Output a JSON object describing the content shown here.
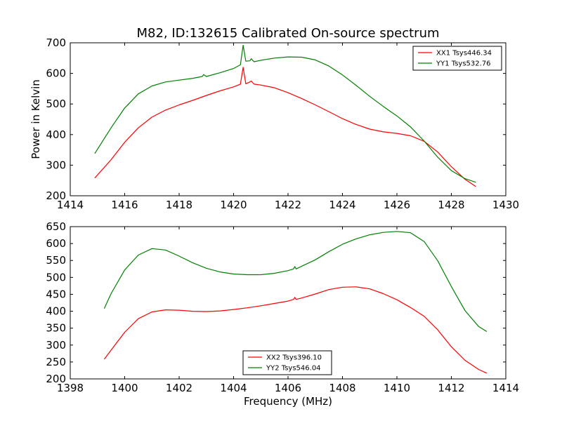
{
  "title": "M82, ID:132615 Calibrated On-source spectrum",
  "chart_data": [
    {
      "type": "line",
      "title": "M82, ID:132615 Calibrated On-source spectrum",
      "xlabel": "",
      "ylabel": "Power in Kelvin",
      "xlim": [
        1414,
        1430
      ],
      "ylim": [
        200,
        700
      ],
      "xticks": [
        1414,
        1416,
        1418,
        1420,
        1422,
        1424,
        1426,
        1428,
        1430
      ],
      "yticks": [
        200,
        300,
        400,
        500,
        600,
        700
      ],
      "grid": false,
      "legend_position": "top-right",
      "series": [
        {
          "name": "XX1 Tsys446.34",
          "color": "#ff0000",
          "x": [
            1414.9,
            1415.5,
            1416.0,
            1416.5,
            1417.0,
            1417.5,
            1418.0,
            1418.5,
            1419.0,
            1419.5,
            1420.0,
            1420.25,
            1420.35,
            1420.45,
            1420.6,
            1420.65,
            1420.75,
            1421.0,
            1421.5,
            1422.0,
            1422.5,
            1423.0,
            1423.5,
            1424.0,
            1424.5,
            1425.0,
            1425.5,
            1426.0,
            1426.5,
            1427.0,
            1427.5,
            1428.0,
            1428.5,
            1428.9
          ],
          "y": [
            258,
            318,
            375,
            422,
            457,
            480,
            497,
            512,
            528,
            543,
            556,
            565,
            620,
            566,
            572,
            575,
            565,
            562,
            553,
            537,
            518,
            497,
            475,
            452,
            433,
            418,
            409,
            404,
            396,
            378,
            343,
            295,
            254,
            230
          ]
        },
        {
          "name": "YY1 Tsys532.76",
          "color": "#008000",
          "x": [
            1414.9,
            1415.5,
            1416.0,
            1416.5,
            1417.0,
            1417.5,
            1418.0,
            1418.5,
            1418.85,
            1418.9,
            1419.0,
            1419.5,
            1420.0,
            1420.25,
            1420.35,
            1420.45,
            1420.6,
            1420.65,
            1420.75,
            1421.0,
            1421.5,
            1422.0,
            1422.5,
            1423.0,
            1423.5,
            1424.0,
            1424.5,
            1425.0,
            1425.5,
            1426.0,
            1426.5,
            1427.0,
            1427.5,
            1428.0,
            1428.5,
            1428.9
          ],
          "y": [
            338,
            422,
            487,
            533,
            559,
            572,
            578,
            584,
            590,
            596,
            590,
            602,
            616,
            628,
            692,
            640,
            641,
            648,
            638,
            643,
            650,
            654,
            653,
            644,
            624,
            595,
            561,
            525,
            492,
            461,
            425,
            379,
            326,
            282,
            256,
            244
          ]
        }
      ]
    },
    {
      "type": "line",
      "title": "",
      "xlabel": "Frequency (MHz)",
      "ylabel": "",
      "xlim": [
        1398,
        1414
      ],
      "ylim": [
        200,
        650
      ],
      "xticks": [
        1398,
        1400,
        1402,
        1404,
        1406,
        1408,
        1410,
        1412,
        1414
      ],
      "yticks": [
        200,
        250,
        300,
        350,
        400,
        450,
        500,
        550,
        600,
        650
      ],
      "grid": false,
      "legend_position": "bottom-center",
      "series": [
        {
          "name": "XX2 Tsys396.10",
          "color": "#ff0000",
          "x": [
            1399.25,
            1399.5,
            1400.0,
            1400.5,
            1401.0,
            1401.5,
            1402.0,
            1402.5,
            1403.0,
            1403.5,
            1404.0,
            1404.5,
            1405.0,
            1405.5,
            1406.0,
            1406.2,
            1406.25,
            1406.3,
            1406.5,
            1407.0,
            1407.5,
            1408.0,
            1408.5,
            1409.0,
            1409.5,
            1410.0,
            1410.5,
            1411.0,
            1411.5,
            1412.0,
            1412.5,
            1413.0,
            1413.3
          ],
          "y": [
            258,
            285,
            338,
            378,
            398,
            404,
            403,
            400,
            399,
            401,
            405,
            410,
            416,
            423,
            430,
            435,
            441,
            435,
            439,
            451,
            464,
            471,
            472,
            466,
            452,
            434,
            411,
            385,
            345,
            295,
            255,
            228,
            217
          ]
        },
        {
          "name": "YY2 Tsys546.04",
          "color": "#008000",
          "x": [
            1399.25,
            1399.5,
            1400.0,
            1400.5,
            1401.0,
            1401.5,
            1402.0,
            1402.5,
            1403.0,
            1403.5,
            1404.0,
            1404.5,
            1405.0,
            1405.5,
            1406.0,
            1406.2,
            1406.25,
            1406.3,
            1406.5,
            1407.0,
            1407.5,
            1408.0,
            1408.5,
            1409.0,
            1409.5,
            1410.0,
            1410.5,
            1411.0,
            1411.5,
            1412.0,
            1412.5,
            1413.0,
            1413.3
          ],
          "y": [
            408,
            452,
            522,
            566,
            585,
            581,
            563,
            543,
            527,
            516,
            510,
            508,
            508,
            512,
            520,
            525,
            532,
            525,
            533,
            552,
            576,
            598,
            614,
            626,
            633,
            636,
            632,
            606,
            549,
            473,
            402,
            355,
            340
          ]
        }
      ]
    }
  ]
}
